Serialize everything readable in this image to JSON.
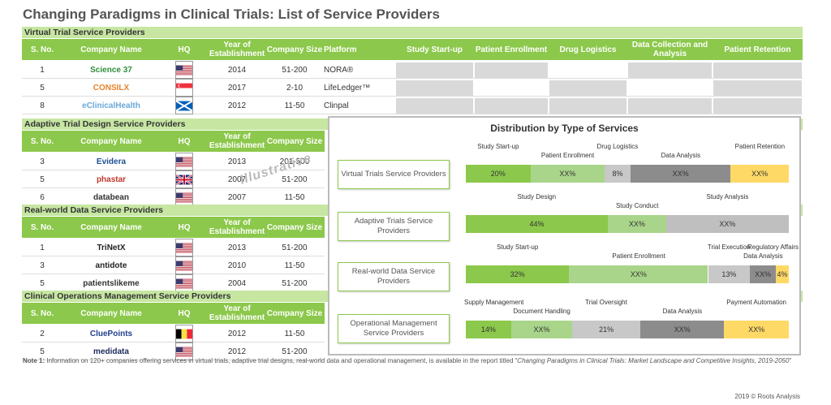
{
  "title": "Changing Paradigms in Clinical Trials: List of Service Providers",
  "columns": {
    "sno": "S. No.",
    "name": "Company Name",
    "hq": "HQ",
    "year": "Year of Establishment",
    "size": "Company Size",
    "platform": "Platform",
    "ssu": "Study Start-up",
    "pe": "Patient Enrollment",
    "dl": "Drug Logistics",
    "dca": "Data Collection and Analysis",
    "pr": "Patient Retention"
  },
  "sections": [
    {
      "title": "Virtual Trial Service Providers",
      "rows": [
        {
          "sno": "1",
          "name": "Science 37",
          "year": "2014",
          "size": "51-200",
          "platform": "NORA®",
          "flag": "us"
        },
        {
          "sno": "5",
          "name": "CONSILX",
          "year": "2017",
          "size": "2-10",
          "platform": "LifeLedger™",
          "flag": "sg"
        },
        {
          "sno": "8",
          "name": "eClinicalHealth",
          "year": "2012",
          "size": "11-50",
          "platform": "Clinpal",
          "flag": "scot"
        }
      ]
    },
    {
      "title": "Adaptive Trial Design Service Providers",
      "rows": [
        {
          "sno": "3",
          "name": "Evidera",
          "year": "2013",
          "size": "201-500",
          "flag": "us"
        },
        {
          "sno": "5",
          "name": "phastar",
          "year": "2007",
          "size": "51-200",
          "flag": "uk"
        },
        {
          "sno": "6",
          "name": "databean",
          "year": "2007",
          "size": "11-50",
          "flag": "us"
        }
      ]
    },
    {
      "title": "Real-world Data Service Providers",
      "rows": [
        {
          "sno": "1",
          "name": "TriNetX",
          "year": "2013",
          "size": "51-200",
          "flag": "us"
        },
        {
          "sno": "3",
          "name": "antidote",
          "year": "2010",
          "size": "11-50",
          "flag": "us"
        },
        {
          "sno": "5",
          "name": "patientslikeme",
          "year": "2004",
          "size": "51-200",
          "flag": "us"
        }
      ]
    },
    {
      "title": "Clinical Operations Management Service Providers",
      "rows": [
        {
          "sno": "2",
          "name": "CluePoints",
          "year": "2012",
          "size": "11-50",
          "flag": "be"
        },
        {
          "sno": "5",
          "name": "medidata",
          "year": "2012",
          "size": "51-200",
          "flag": "us"
        }
      ]
    }
  ],
  "watermark": "Illustrative",
  "chart_data": {
    "type": "bar",
    "title": "Distribution by Type of Services",
    "series": [
      {
        "name": "Virtual Trials Service Providers",
        "segments": [
          {
            "label": "Study Start-up",
            "value": "20%",
            "pct": 20,
            "color": "#8cc84b"
          },
          {
            "label": "Patient Enrollment",
            "value": "XX%",
            "pct": 23,
            "color": "#a9d58a"
          },
          {
            "label": "Drug Logistics",
            "value": "8%",
            "pct": 8,
            "color": "#c8c8c8"
          },
          {
            "label": "Data Analysis",
            "value": "XX%",
            "pct": 31,
            "color": "#8c8c8c"
          },
          {
            "label": "Patient Retention",
            "value": "XX%",
            "pct": 18,
            "color": "#ffd966"
          }
        ]
      },
      {
        "name": "Adaptive Trials Service Providers",
        "segments": [
          {
            "label": "Study Design",
            "value": "44%",
            "pct": 44,
            "color": "#8cc84b"
          },
          {
            "label": "Study Conduct",
            "value": "XX%",
            "pct": 18,
            "color": "#a9d58a"
          },
          {
            "label": "Study Analysis",
            "value": "XX%",
            "pct": 38,
            "color": "#bfbfbf"
          }
        ]
      },
      {
        "name": "Real-world Data Service Providers",
        "segments": [
          {
            "label": "Study Start-up",
            "value": "32%",
            "pct": 32,
            "color": "#8cc84b"
          },
          {
            "label": "Patient Enrollment",
            "value": "XX%",
            "pct": 43,
            "color": "#a9d58a"
          },
          {
            "label": "Trial Execution",
            "value": "13%",
            "pct": 13,
            "color": "#c8c8c8"
          },
          {
            "label": "Data Analysis",
            "value": "XX%",
            "pct": 8,
            "color": "#8c8c8c"
          },
          {
            "label": "Regulatory Affairs",
            "value": "4%",
            "pct": 4,
            "color": "#ffd966"
          }
        ]
      },
      {
        "name": "Operational Management Service Providers",
        "segments": [
          {
            "label": "Supply Management",
            "value": "14%",
            "pct": 14,
            "color": "#8cc84b"
          },
          {
            "label": "Document Handling",
            "value": "XX%",
            "pct": 19,
            "color": "#a9d58a"
          },
          {
            "label": "Trial Oversight",
            "value": "21%",
            "pct": 21,
            "color": "#c8c8c8"
          },
          {
            "label": "Data Analysis",
            "value": "XX%",
            "pct": 26,
            "color": "#8c8c8c"
          },
          {
            "label": "Payment Automation",
            "value": "XX%",
            "pct": 20,
            "color": "#ffd966"
          }
        ]
      }
    ]
  },
  "note_prefix": "Note 1:",
  "note": " Information on 120+ companies offering services in virtual trials, adaptive trial designs, real-world data and operational management,  is available in the report titled “",
  "note_report": "Changing Paradigms in Clinical Trials: Market Landscape and Competitive Insights, 2019-2050",
  "note_end": "”",
  "copyright": "2019 © Roots Analysis"
}
